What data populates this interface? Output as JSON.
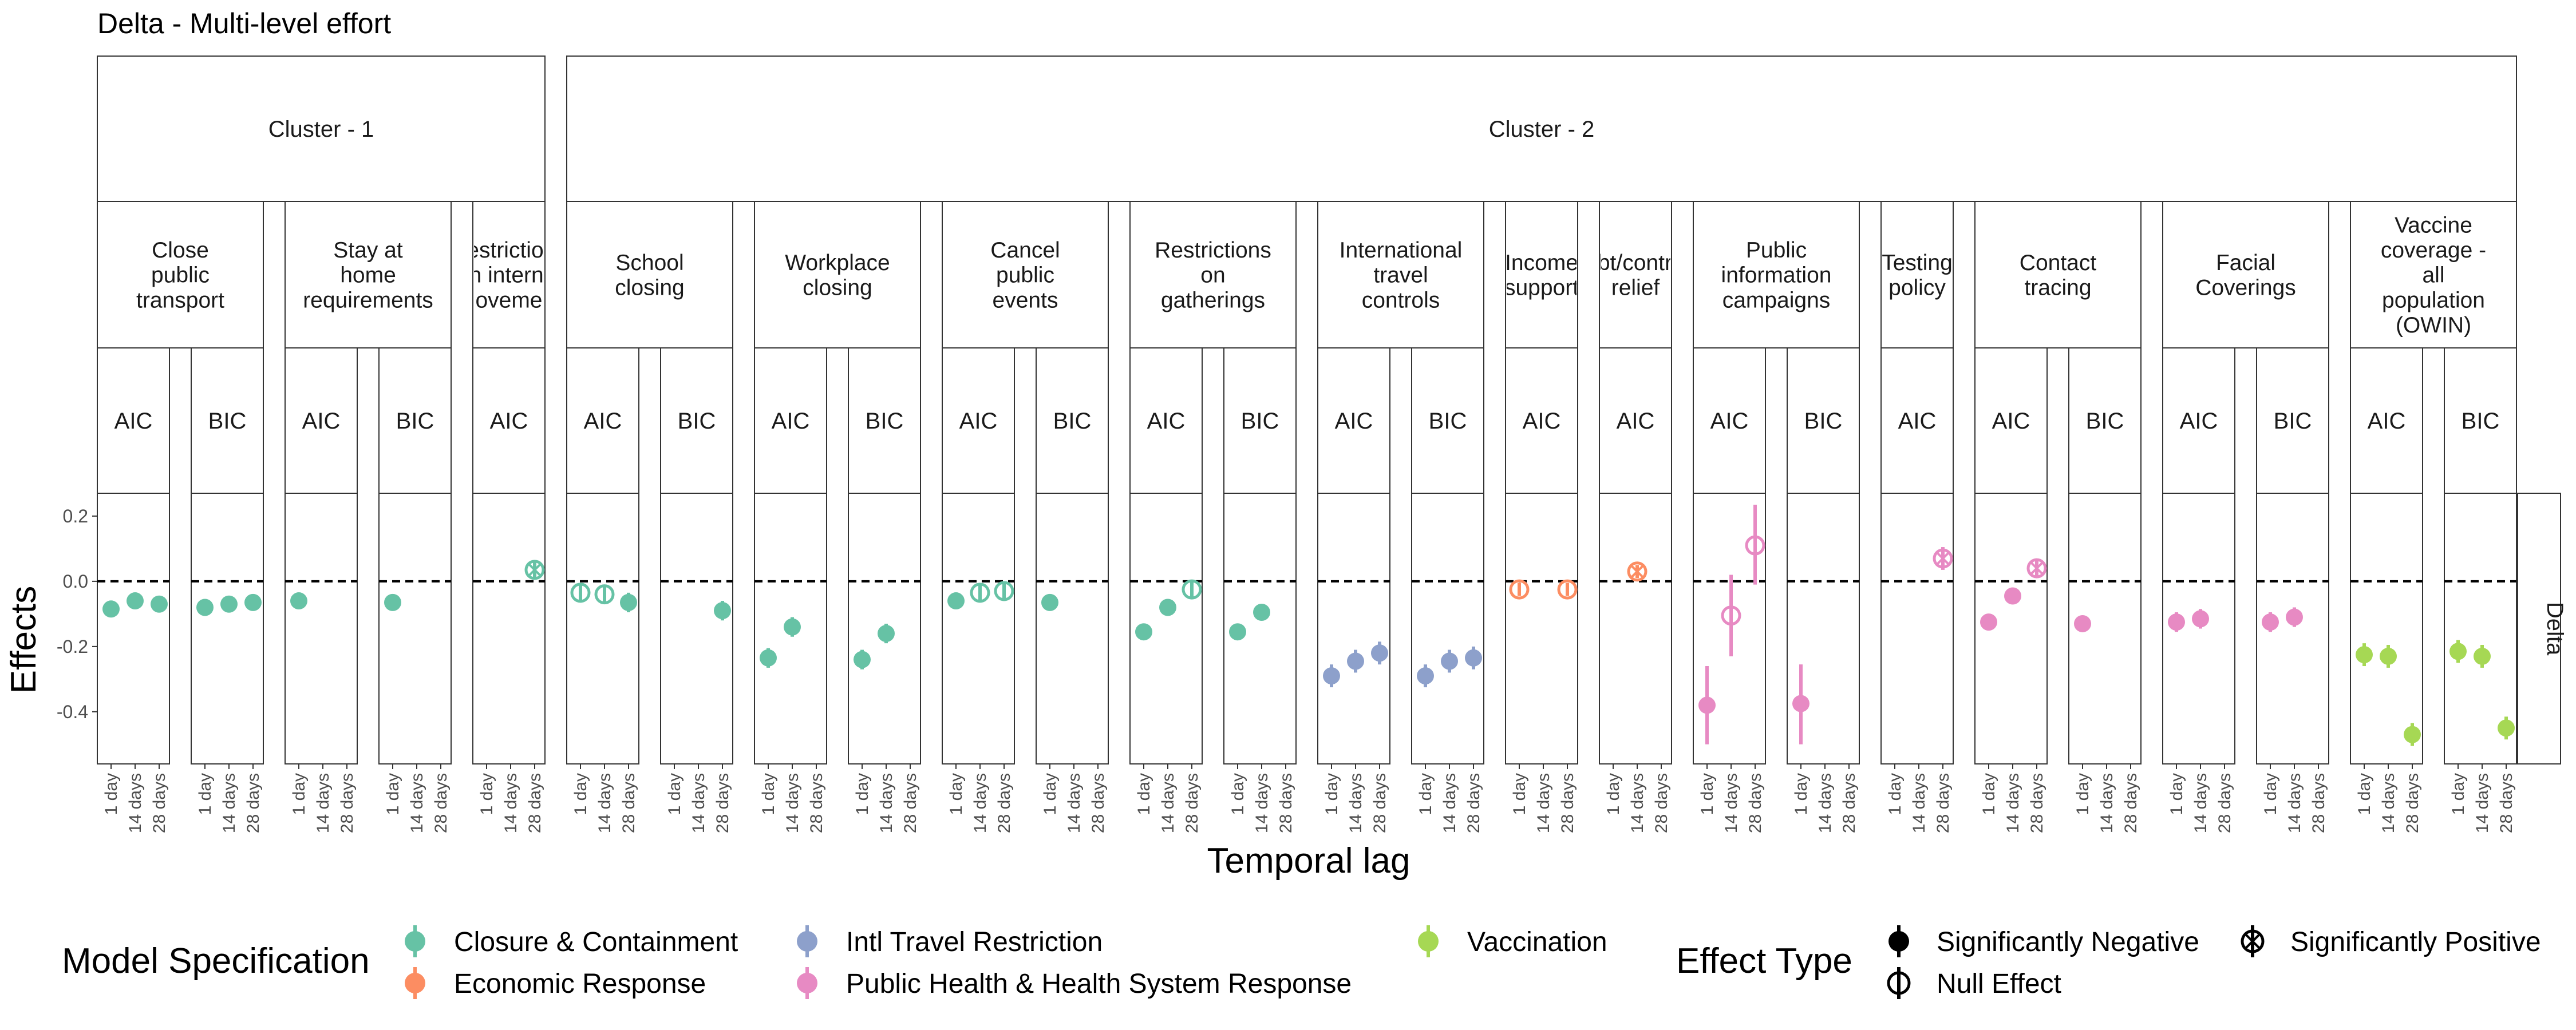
{
  "colors": {
    "closure": "#66C2A5",
    "economic": "#FC8D62",
    "travel": "#8DA0CB",
    "health": "#E78AC3",
    "vaccination": "#A6D854"
  },
  "chart_data": {
    "type": "scatter",
    "title": "Delta - Multi-level effort",
    "xlabel": "Temporal lag",
    "ylabel": "Effects",
    "ylim": [
      -0.56,
      0.27
    ],
    "y_ticks": [
      0.2,
      0.0,
      -0.2,
      -0.4
    ],
    "y_tick_labels": [
      "0.2",
      "0.0",
      "-0.2",
      "-0.4"
    ],
    "reference_line": 0.0,
    "x_categories": [
      "1 day",
      "14 days",
      "28 days"
    ],
    "right_strip": "Delta",
    "clusters": [
      {
        "label": "Cluster - 1",
        "first_column": 0,
        "last_column": 4
      },
      {
        "label": "Cluster - 2",
        "first_column": 5,
        "last_column": 25
      }
    ],
    "groups": [
      {
        "label": "Close\npublic\ntransport",
        "first_column": 0,
        "last_column": 1
      },
      {
        "label": "Stay at\nhome\nrequirements",
        "first_column": 2,
        "last_column": 3
      },
      {
        "label": "Restrictions\non internal\nmovement",
        "first_column": 4,
        "last_column": 4
      },
      {
        "label": "School\nclosing",
        "first_column": 5,
        "last_column": 6
      },
      {
        "label": "Workplace\nclosing",
        "first_column": 7,
        "last_column": 8
      },
      {
        "label": "Cancel\npublic\nevents",
        "first_column": 9,
        "last_column": 10
      },
      {
        "label": "Restrictions\non\ngatherings",
        "first_column": 11,
        "last_column": 12
      },
      {
        "label": "International\ntravel\ncontrols",
        "first_column": 13,
        "last_column": 14
      },
      {
        "label": "Income\nsupport",
        "first_column": 15,
        "last_column": 15
      },
      {
        "label": "Debt/contract\nrelief",
        "first_column": 16,
        "last_column": 16
      },
      {
        "label": "Public\ninformation\ncampaigns",
        "first_column": 17,
        "last_column": 18
      },
      {
        "label": "Testing\npolicy",
        "first_column": 19,
        "last_column": 19
      },
      {
        "label": "Contact\ntracing",
        "first_column": 20,
        "last_column": 21
      },
      {
        "label": "Facial\nCoverings",
        "first_column": 22,
        "last_column": 23
      },
      {
        "label": "Vaccine\ncoverage -\nall\npopulation\n(OWIN)",
        "first_column": 24,
        "last_column": 25
      }
    ],
    "panels": [
      {
        "criterion": "AIC",
        "category": "closure",
        "points": [
          {
            "x": "1 day",
            "y": -0.085,
            "lo": -0.11,
            "hi": -0.06,
            "effect": "negative"
          },
          {
            "x": "14 days",
            "y": -0.06,
            "lo": -0.085,
            "hi": -0.035,
            "effect": "negative"
          },
          {
            "x": "28 days",
            "y": -0.07,
            "lo": -0.095,
            "hi": -0.045,
            "effect": "negative"
          }
        ]
      },
      {
        "criterion": "BIC",
        "category": "closure",
        "points": [
          {
            "x": "1 day",
            "y": -0.08,
            "lo": -0.105,
            "hi": -0.055,
            "effect": "negative"
          },
          {
            "x": "14 days",
            "y": -0.07,
            "lo": -0.095,
            "hi": -0.045,
            "effect": "negative"
          },
          {
            "x": "28 days",
            "y": -0.065,
            "lo": -0.09,
            "hi": -0.04,
            "effect": "negative"
          }
        ]
      },
      {
        "criterion": "AIC",
        "category": "closure",
        "points": [
          {
            "x": "1 day",
            "y": -0.06,
            "lo": -0.085,
            "hi": -0.035,
            "effect": "negative"
          }
        ]
      },
      {
        "criterion": "BIC",
        "category": "closure",
        "points": [
          {
            "x": "1 day",
            "y": -0.065,
            "lo": -0.09,
            "hi": -0.04,
            "effect": "negative"
          }
        ]
      },
      {
        "criterion": "AIC",
        "category": "closure",
        "points": [
          {
            "x": "28 days",
            "y": 0.035,
            "lo": 0.01,
            "hi": 0.06,
            "effect": "positive"
          }
        ]
      },
      {
        "criterion": "AIC",
        "category": "closure",
        "points": [
          {
            "x": "1 day",
            "y": -0.035,
            "lo": -0.06,
            "hi": -0.01,
            "effect": "null"
          },
          {
            "x": "14 days",
            "y": -0.04,
            "lo": -0.07,
            "hi": -0.01,
            "effect": "null"
          },
          {
            "x": "28 days",
            "y": -0.065,
            "lo": -0.095,
            "hi": -0.035,
            "effect": "negative"
          }
        ]
      },
      {
        "criterion": "BIC",
        "category": "closure",
        "points": [
          {
            "x": "28 days",
            "y": -0.09,
            "lo": -0.12,
            "hi": -0.06,
            "effect": "negative"
          }
        ]
      },
      {
        "criterion": "AIC",
        "category": "closure",
        "points": [
          {
            "x": "1 day",
            "y": -0.235,
            "lo": -0.265,
            "hi": -0.205,
            "effect": "negative"
          },
          {
            "x": "14 days",
            "y": -0.14,
            "lo": -0.17,
            "hi": -0.11,
            "effect": "negative"
          }
        ]
      },
      {
        "criterion": "BIC",
        "category": "closure",
        "points": [
          {
            "x": "1 day",
            "y": -0.24,
            "lo": -0.27,
            "hi": -0.21,
            "effect": "negative"
          },
          {
            "x": "14 days",
            "y": -0.16,
            "lo": -0.19,
            "hi": -0.13,
            "effect": "negative"
          }
        ]
      },
      {
        "criterion": "AIC",
        "category": "closure",
        "points": [
          {
            "x": "1 day",
            "y": -0.06,
            "lo": -0.085,
            "hi": -0.035,
            "effect": "negative"
          },
          {
            "x": "14 days",
            "y": -0.035,
            "lo": -0.06,
            "hi": -0.01,
            "effect": "null"
          },
          {
            "x": "28 days",
            "y": -0.03,
            "lo": -0.055,
            "hi": -0.005,
            "effect": "null"
          }
        ]
      },
      {
        "criterion": "BIC",
        "category": "closure",
        "points": [
          {
            "x": "1 day",
            "y": -0.065,
            "lo": -0.09,
            "hi": -0.04,
            "effect": "negative"
          }
        ]
      },
      {
        "criterion": "AIC",
        "category": "closure",
        "points": [
          {
            "x": "1 day",
            "y": -0.155,
            "lo": -0.18,
            "hi": -0.13,
            "effect": "negative"
          },
          {
            "x": "14 days",
            "y": -0.08,
            "lo": -0.105,
            "hi": -0.055,
            "effect": "negative"
          },
          {
            "x": "28 days",
            "y": -0.025,
            "lo": -0.05,
            "hi": 0.0,
            "effect": "null"
          }
        ]
      },
      {
        "criterion": "BIC",
        "category": "closure",
        "points": [
          {
            "x": "1 day",
            "y": -0.155,
            "lo": -0.18,
            "hi": -0.13,
            "effect": "negative"
          },
          {
            "x": "14 days",
            "y": -0.095,
            "lo": -0.12,
            "hi": -0.07,
            "effect": "negative"
          }
        ]
      },
      {
        "criterion": "AIC",
        "category": "travel",
        "points": [
          {
            "x": "1 day",
            "y": -0.29,
            "lo": -0.325,
            "hi": -0.255,
            "effect": "negative"
          },
          {
            "x": "14 days",
            "y": -0.245,
            "lo": -0.28,
            "hi": -0.21,
            "effect": "negative"
          },
          {
            "x": "28 days",
            "y": -0.22,
            "lo": -0.255,
            "hi": -0.185,
            "effect": "negative"
          }
        ]
      },
      {
        "criterion": "BIC",
        "category": "travel",
        "points": [
          {
            "x": "1 day",
            "y": -0.29,
            "lo": -0.325,
            "hi": -0.255,
            "effect": "negative"
          },
          {
            "x": "14 days",
            "y": -0.245,
            "lo": -0.28,
            "hi": -0.21,
            "effect": "negative"
          },
          {
            "x": "28 days",
            "y": -0.235,
            "lo": -0.27,
            "hi": -0.2,
            "effect": "negative"
          }
        ]
      },
      {
        "criterion": "AIC",
        "category": "economic",
        "points": [
          {
            "x": "1 day",
            "y": -0.025,
            "lo": -0.045,
            "hi": -0.005,
            "effect": "null"
          },
          {
            "x": "28 days",
            "y": -0.025,
            "lo": -0.045,
            "hi": -0.005,
            "effect": "null"
          }
        ]
      },
      {
        "criterion": "AIC",
        "category": "economic",
        "points": [
          {
            "x": "14 days",
            "y": 0.03,
            "lo": 0.01,
            "hi": 0.05,
            "effect": "positive"
          }
        ]
      },
      {
        "criterion": "AIC",
        "category": "health",
        "points": [
          {
            "x": "1 day",
            "y": -0.38,
            "lo": -0.5,
            "hi": -0.26,
            "effect": "negative"
          },
          {
            "x": "14 days",
            "y": -0.105,
            "lo": -0.23,
            "hi": 0.02,
            "effect": "null"
          },
          {
            "x": "28 days",
            "y": 0.11,
            "lo": -0.01,
            "hi": 0.235,
            "effect": "null"
          }
        ]
      },
      {
        "criterion": "BIC",
        "category": "health",
        "points": [
          {
            "x": "1 day",
            "y": -0.375,
            "lo": -0.5,
            "hi": -0.255,
            "effect": "negative"
          }
        ]
      },
      {
        "criterion": "AIC",
        "category": "health",
        "points": [
          {
            "x": "28 days",
            "y": 0.07,
            "lo": 0.035,
            "hi": 0.105,
            "effect": "positive"
          }
        ]
      },
      {
        "criterion": "AIC",
        "category": "health",
        "points": [
          {
            "x": "1 day",
            "y": -0.125,
            "lo": -0.145,
            "hi": -0.105,
            "effect": "negative"
          },
          {
            "x": "14 days",
            "y": -0.045,
            "lo": -0.07,
            "hi": -0.02,
            "effect": "negative"
          },
          {
            "x": "28 days",
            "y": 0.04,
            "lo": 0.015,
            "hi": 0.065,
            "effect": "positive"
          }
        ]
      },
      {
        "criterion": "BIC",
        "category": "health",
        "points": [
          {
            "x": "1 day",
            "y": -0.13,
            "lo": -0.15,
            "hi": -0.11,
            "effect": "negative"
          }
        ]
      },
      {
        "criterion": "AIC",
        "category": "health",
        "points": [
          {
            "x": "1 day",
            "y": -0.125,
            "lo": -0.155,
            "hi": -0.095,
            "effect": "negative"
          },
          {
            "x": "14 days",
            "y": -0.115,
            "lo": -0.145,
            "hi": -0.085,
            "effect": "negative"
          }
        ]
      },
      {
        "criterion": "BIC",
        "category": "health",
        "points": [
          {
            "x": "1 day",
            "y": -0.125,
            "lo": -0.155,
            "hi": -0.095,
            "effect": "negative"
          },
          {
            "x": "14 days",
            "y": -0.11,
            "lo": -0.14,
            "hi": -0.08,
            "effect": "negative"
          }
        ]
      },
      {
        "criterion": "AIC",
        "category": "vaccination",
        "points": [
          {
            "x": "1 day",
            "y": -0.225,
            "lo": -0.26,
            "hi": -0.19,
            "effect": "negative"
          },
          {
            "x": "14 days",
            "y": -0.23,
            "lo": -0.265,
            "hi": -0.195,
            "effect": "negative"
          },
          {
            "x": "28 days",
            "y": -0.47,
            "lo": -0.505,
            "hi": -0.435,
            "effect": "negative"
          }
        ]
      },
      {
        "criterion": "BIC",
        "category": "vaccination",
        "points": [
          {
            "x": "1 day",
            "y": -0.215,
            "lo": -0.25,
            "hi": -0.18,
            "effect": "negative"
          },
          {
            "x": "14 days",
            "y": -0.23,
            "lo": -0.265,
            "hi": -0.195,
            "effect": "negative"
          },
          {
            "x": "28 days",
            "y": -0.45,
            "lo": -0.485,
            "hi": -0.415,
            "effect": "negative"
          }
        ]
      }
    ],
    "legend": {
      "color_title": "Model Specification",
      "color_items": [
        {
          "key": "closure",
          "label": "Closure & Containment"
        },
        {
          "key": "economic",
          "label": "Economic Response"
        },
        {
          "key": "travel",
          "label": "Intl Travel Restriction"
        },
        {
          "key": "health",
          "label": "Public Health & Health System Response"
        },
        {
          "key": "vaccination",
          "label": "Vaccination"
        }
      ],
      "shape_title": "Effect Type",
      "shape_items": [
        {
          "key": "negative",
          "label": "Significantly Negative"
        },
        {
          "key": "null",
          "label": "Null Effect"
        },
        {
          "key": "positive",
          "label": "Significantly Positive"
        }
      ]
    }
  }
}
